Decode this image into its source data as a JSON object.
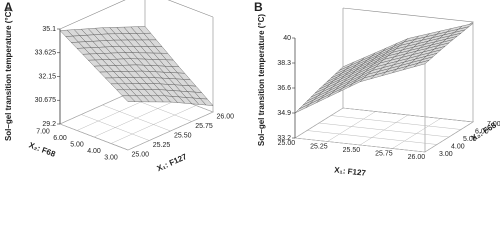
{
  "chart_data": [
    {
      "type": "surface",
      "panel_label": "A",
      "zlabel": "Sol–gel transition temperature (°C)",
      "x1label": "X₁: F127",
      "x2label": "X₂: F68",
      "x1": [
        25,
        25.5,
        26
      ],
      "x2": [
        3,
        5,
        7
      ],
      "z": [
        [
          32.2,
          33.6,
          35.0
        ],
        [
          31.0,
          32.5,
          34.0
        ],
        [
          29.6,
          31.2,
          32.9
        ]
      ],
      "x1lim": [
        25,
        26
      ],
      "x2lim": [
        3,
        7
      ],
      "zlim": [
        29.2,
        35.1
      ],
      "x1ticks": [
        {
          "value": 25,
          "label": "25.00"
        },
        {
          "value": 25.25,
          "label": "25.25"
        },
        {
          "value": 25.5,
          "label": "25.50"
        },
        {
          "value": 25.75,
          "label": "25.75"
        },
        {
          "value": 26,
          "label": "26.00"
        }
      ],
      "x2ticks": [
        {
          "value": 3,
          "label": "3.00"
        },
        {
          "value": 4,
          "label": "4.00"
        },
        {
          "value": 5,
          "label": "5.00"
        },
        {
          "value": 6,
          "label": "6.00"
        },
        {
          "value": 7,
          "label": "7.00"
        }
      ],
      "zticks": [
        29.2,
        30.675,
        32.15,
        33.625,
        35.1
      ],
      "color": "#d9d9d9"
    },
    {
      "type": "surface",
      "panel_label": "B",
      "zlabel": "Sol–gel transition temperature (°C)",
      "x1label": "X₁: F127",
      "x2label": "X₂: F68",
      "x1": [
        25,
        25.5,
        26
      ],
      "x2": [
        3,
        5,
        7
      ],
      "z": [
        [
          34.9,
          35.5,
          36.0
        ],
        [
          37.5,
          38.0,
          38.4
        ],
        [
          39.2,
          39.6,
          39.9
        ]
      ],
      "x1lim": [
        25,
        26
      ],
      "x2lim": [
        3,
        7
      ],
      "zlim": [
        33.2,
        40
      ],
      "x1ticks": [
        {
          "value": 25,
          "label": "25.00"
        },
        {
          "value": 25.25,
          "label": "25.25"
        },
        {
          "value": 25.5,
          "label": "25.50"
        },
        {
          "value": 25.75,
          "label": "25.75"
        },
        {
          "value": 26,
          "label": "26.00"
        }
      ],
      "x2ticks": [
        {
          "value": 3,
          "label": "3.00"
        },
        {
          "value": 4,
          "label": "4.00"
        },
        {
          "value": 5,
          "label": "5.00"
        },
        {
          "value": 6,
          "label": "6.00"
        },
        {
          "value": 7,
          "label": "7.00"
        }
      ],
      "zticks": [
        33.2,
        34.9,
        36.6,
        38.3,
        40
      ],
      "color": "#d9d9d9"
    }
  ]
}
